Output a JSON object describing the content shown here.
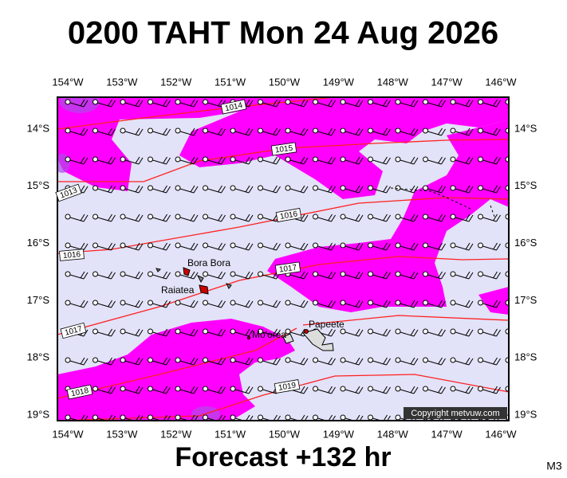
{
  "header": {
    "title": "0200 TAHT Mon 24 Aug 2026"
  },
  "map": {
    "longitude_labels": [
      "154°W",
      "153°W",
      "152°W",
      "151°W",
      "150°W",
      "149°W",
      "148°W",
      "147°W",
      "146°W"
    ],
    "latitude_labels": [
      "14°S",
      "15°S",
      "16°S",
      "17°S",
      "18°S",
      "19°S"
    ],
    "isobar_labels": [
      "1014",
      "1015",
      "1013",
      "1016",
      "1016",
      "1017",
      "1017",
      "1018",
      "1019"
    ],
    "places": [
      "Bora Bora",
      "Raiatea",
      "Mo'orea",
      "Papeete"
    ],
    "credit": "Copyright metvuw.com"
  },
  "footer": {
    "forecast": "Forecast +132 hr",
    "code": "M3"
  }
}
